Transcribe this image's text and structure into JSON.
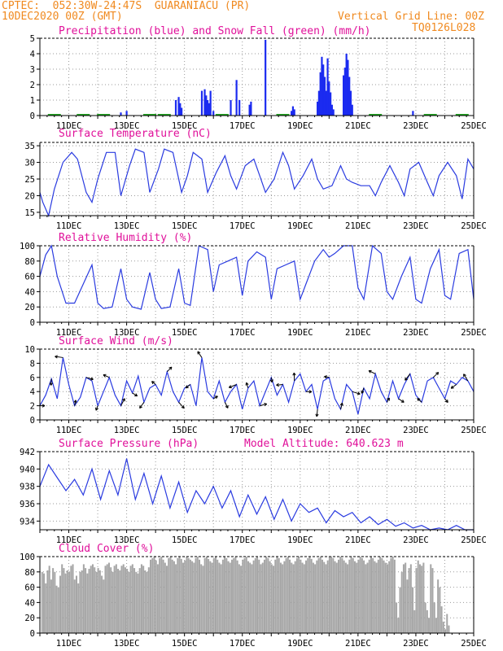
{
  "header": {
    "line1": "CPTEC:  052:30W-24:47S  GUARANIACU (PR)",
    "line2": "10DEC2020 00Z (GMT)",
    "grid_note": "Vertical Grid Line: 00Z",
    "code": "TQ0126L028"
  },
  "colors": {
    "header": "#f08a20",
    "title": "#e0109a",
    "precip": "#1b2bf0",
    "snow": "#1aa21a",
    "line": "#2a3be0",
    "cloud": "#a6a6a6",
    "grid": "#9a9a9a"
  },
  "x_axis": {
    "start_day": 10,
    "end_day": 25,
    "tick_labels": [
      "11DEC",
      "13DEC",
      "15DEC",
      "17DEC",
      "19DEC",
      "21DEC",
      "23DEC",
      "25DEC"
    ]
  },
  "chart_data": [
    {
      "type": "bar",
      "title": "Precipitation (blue) and Snow Fall (green) (mm/h)",
      "ylim": [
        0,
        5
      ],
      "yticks": [
        "0",
        "1",
        "2",
        "3",
        "4",
        "5"
      ],
      "series": [
        {
          "name": "Precipitation",
          "x": [
            12.8,
            13.0,
            14.7,
            14.8,
            14.85,
            14.9,
            15.6,
            15.7,
            15.75,
            15.8,
            15.85,
            15.9,
            16.0,
            16.6,
            16.8,
            16.9,
            17.25,
            17.3,
            17.8,
            18.7,
            18.75,
            18.8,
            19.6,
            19.65,
            19.7,
            19.75,
            19.8,
            19.85,
            19.9,
            19.95,
            20.0,
            20.05,
            20.1,
            20.15,
            20.5,
            20.55,
            20.6,
            20.65,
            20.7,
            20.75,
            20.8,
            22.9
          ],
          "values": [
            0.2,
            0.3,
            1.0,
            1.2,
            0.8,
            0.5,
            1.6,
            1.7,
            1.3,
            1.0,
            0.8,
            1.6,
            0.3,
            1.0,
            2.3,
            1.0,
            0.7,
            0.9,
            4.9,
            0.3,
            0.6,
            0.4,
            0.9,
            1.6,
            2.8,
            3.8,
            3.3,
            2.5,
            1.6,
            3.7,
            2.2,
            1.5,
            0.7,
            0.4,
            2.6,
            3.1,
            4.0,
            3.6,
            2.5,
            1.6,
            0.7,
            0.3
          ]
        },
        {
          "name": "Snow Fall",
          "x": [
            10.5,
            11.5,
            12.2,
            13.8,
            14.3,
            16.3,
            18.4,
            21.6,
            23.5,
            24.6
          ],
          "values": [
            0.05,
            0.05,
            0.05,
            0.05,
            0.05,
            0.05,
            0.05,
            0.05,
            0.05,
            0.05
          ]
        }
      ]
    },
    {
      "type": "line",
      "title": "Surface Temperature (nC)",
      "ylim": [
        14,
        36
      ],
      "yticks": [
        "15",
        "20",
        "25",
        "30",
        "35"
      ],
      "x": [
        10.0,
        10.1,
        10.3,
        10.5,
        10.8,
        11.1,
        11.3,
        11.6,
        11.8,
        12.0,
        12.3,
        12.6,
        12.8,
        13.1,
        13.3,
        13.6,
        13.8,
        14.1,
        14.3,
        14.6,
        14.9,
        15.1,
        15.3,
        15.6,
        15.8,
        16.1,
        16.4,
        16.6,
        16.8,
        17.1,
        17.4,
        17.6,
        17.8,
        18.1,
        18.4,
        18.6,
        18.8,
        19.1,
        19.4,
        19.6,
        19.8,
        20.1,
        20.4,
        20.6,
        20.8,
        21.1,
        21.4,
        21.6,
        21.8,
        22.1,
        22.4,
        22.6,
        22.8,
        23.1,
        23.4,
        23.6,
        23.8,
        24.1,
        24.4,
        24.6,
        24.8,
        25.0
      ],
      "values": [
        21,
        18,
        14,
        22,
        30,
        33,
        31,
        21,
        18,
        25,
        33,
        33,
        20,
        29,
        34,
        33,
        21,
        28,
        34,
        33,
        21,
        26,
        33,
        31,
        21,
        27,
        32,
        26,
        22,
        29,
        31,
        26,
        21,
        25,
        33,
        29,
        22,
        26,
        31,
        25,
        22,
        23,
        29,
        25,
        24,
        23,
        23,
        20,
        24,
        29,
        24,
        20,
        28,
        30,
        24,
        20,
        26,
        30,
        26,
        19,
        31,
        28
      ]
    },
    {
      "type": "line",
      "title": "Relative Humidity (%)",
      "ylim": [
        0,
        100
      ],
      "yticks": [
        "0",
        "20",
        "40",
        "60",
        "80",
        "100"
      ],
      "x": [
        10.0,
        10.2,
        10.4,
        10.6,
        10.9,
        11.2,
        11.5,
        11.8,
        12.0,
        12.2,
        12.5,
        12.8,
        13.0,
        13.2,
        13.5,
        13.8,
        14.0,
        14.2,
        14.5,
        14.8,
        15.0,
        15.2,
        15.5,
        15.8,
        16.0,
        16.2,
        16.5,
        16.8,
        17.0,
        17.2,
        17.5,
        17.8,
        18.0,
        18.2,
        18.5,
        18.8,
        19.0,
        19.2,
        19.5,
        19.8,
        20.0,
        20.2,
        20.5,
        20.8,
        21.0,
        21.2,
        21.5,
        21.8,
        22.0,
        22.2,
        22.5,
        22.8,
        23.0,
        23.2,
        23.5,
        23.8,
        24.0,
        24.2,
        24.5,
        24.8,
        25.0
      ],
      "values": [
        60,
        88,
        100,
        60,
        25,
        25,
        50,
        75,
        25,
        18,
        20,
        70,
        30,
        20,
        17,
        65,
        30,
        18,
        20,
        70,
        25,
        22,
        100,
        95,
        40,
        75,
        80,
        85,
        35,
        80,
        92,
        85,
        30,
        70,
        75,
        80,
        30,
        50,
        80,
        95,
        85,
        90,
        100,
        100,
        45,
        30,
        100,
        90,
        40,
        30,
        60,
        85,
        30,
        25,
        70,
        95,
        35,
        30,
        90,
        95,
        30
      ]
    },
    {
      "type": "line",
      "title": "Surface Wind (m/s)",
      "ylim": [
        0,
        10
      ],
      "yticks": [
        "0",
        "2",
        "4",
        "6",
        "8",
        "10"
      ],
      "x": [
        10.0,
        10.2,
        10.4,
        10.6,
        10.8,
        11.0,
        11.2,
        11.4,
        11.6,
        11.8,
        12.0,
        12.2,
        12.4,
        12.6,
        12.8,
        13.0,
        13.2,
        13.4,
        13.6,
        13.8,
        14.0,
        14.2,
        14.4,
        14.6,
        14.8,
        15.0,
        15.2,
        15.4,
        15.6,
        15.8,
        16.0,
        16.2,
        16.4,
        16.6,
        16.8,
        17.0,
        17.2,
        17.4,
        17.6,
        17.8,
        18.0,
        18.2,
        18.4,
        18.6,
        18.8,
        19.0,
        19.2,
        19.4,
        19.6,
        19.8,
        20.0,
        20.2,
        20.4,
        20.6,
        20.8,
        21.0,
        21.2,
        21.4,
        21.6,
        21.8,
        22.0,
        22.2,
        22.4,
        22.6,
        22.8,
        23.0,
        23.2,
        23.4,
        23.6,
        23.8,
        24.0,
        24.2,
        24.4,
        24.6,
        24.8,
        25.0
      ],
      "values": [
        2.0,
        3.5,
        5.8,
        3.0,
        8.8,
        5.0,
        2.0,
        3.2,
        6.0,
        5.5,
        2.0,
        4.0,
        6.0,
        3.5,
        2.0,
        5.5,
        3.8,
        6.2,
        2.5,
        4.5,
        5.0,
        3.5,
        6.8,
        4.0,
        2.5,
        4.5,
        5.0,
        2.0,
        8.8,
        4.0,
        3.0,
        5.5,
        2.5,
        4.0,
        5.0,
        1.5,
        4.5,
        5.5,
        2.0,
        4.0,
        6.0,
        3.5,
        5.0,
        2.5,
        5.5,
        6.5,
        4.0,
        5.0,
        1.5,
        5.5,
        6.0,
        3.0,
        1.5,
        5.0,
        4.0,
        0.8,
        4.5,
        3.0,
        6.5,
        4.0,
        2.5,
        5.5,
        3.0,
        5.0,
        6.5,
        3.5,
        2.5,
        5.5,
        6.0,
        4.5,
        3.0,
        5.5,
        5.0,
        6.0,
        5.5,
        4.0
      ]
    },
    {
      "type": "line",
      "title": "Surface Pressure (hPa)",
      "subtitle": "Model Altitude: 640.623 m",
      "ylim": [
        933,
        942
      ],
      "yticks": [
        "934",
        "936",
        "938",
        "940",
        "942"
      ],
      "x": [
        10.0,
        10.3,
        10.6,
        10.9,
        11.2,
        11.5,
        11.8,
        12.1,
        12.4,
        12.7,
        13.0,
        13.3,
        13.6,
        13.9,
        14.2,
        14.5,
        14.8,
        15.1,
        15.4,
        15.7,
        16.0,
        16.3,
        16.6,
        16.9,
        17.2,
        17.5,
        17.8,
        18.1,
        18.4,
        18.7,
        19.0,
        19.3,
        19.6,
        19.9,
        20.2,
        20.5,
        20.8,
        21.1,
        21.4,
        21.7,
        22.0,
        22.3,
        22.6,
        22.9,
        23.2,
        23.5,
        23.8,
        24.1,
        24.4,
        24.7,
        25.0
      ],
      "values": [
        938.0,
        940.5,
        939.0,
        937.5,
        938.8,
        937.0,
        940.0,
        936.5,
        939.8,
        937.0,
        941.2,
        936.5,
        939.5,
        936.0,
        939.2,
        935.5,
        938.5,
        935.0,
        937.5,
        936.0,
        938.0,
        935.5,
        937.5,
        934.5,
        937.0,
        934.8,
        936.8,
        934.2,
        936.5,
        934.0,
        936.0,
        935.0,
        935.5,
        933.8,
        935.2,
        934.5,
        935.0,
        933.8,
        934.5,
        933.6,
        934.2,
        933.4,
        933.8,
        933.2,
        933.5,
        933.0,
        933.2,
        933.0,
        933.5,
        933.0,
        932.8
      ]
    },
    {
      "type": "bar",
      "title": "Cloud Cover (%)",
      "ylim": [
        0,
        100
      ],
      "yticks": [
        "0",
        "20",
        "40",
        "60",
        "80",
        "100"
      ],
      "x_start": 10.05,
      "x_step": 0.0625,
      "values": [
        80,
        78,
        65,
        82,
        88,
        70,
        85,
        80,
        62,
        60,
        75,
        90,
        85,
        78,
        82,
        80,
        88,
        90,
        70,
        75,
        65,
        80,
        82,
        90,
        85,
        78,
        84,
        88,
        90,
        86,
        80,
        85,
        82,
        75,
        70,
        88,
        90,
        92,
        86,
        80,
        88,
        90,
        84,
        82,
        88,
        90,
        86,
        84,
        80,
        88,
        90,
        85,
        80,
        78,
        85,
        90,
        88,
        82,
        80,
        86,
        96,
        98,
        100,
        95,
        90,
        98,
        100,
        96,
        92,
        88,
        98,
        100,
        96,
        94,
        90,
        98,
        100,
        97,
        92,
        95,
        100,
        98,
        96,
        94,
        92,
        98,
        100,
        96,
        90,
        88,
        98,
        100,
        97,
        94,
        92,
        98,
        100,
        96,
        92,
        90,
        96,
        100,
        98,
        94,
        92,
        96,
        98,
        100,
        95,
        90,
        88,
        96,
        98,
        100,
        94,
        92,
        90,
        95,
        98,
        100,
        96,
        90,
        92,
        96,
        100,
        98,
        94,
        90,
        88,
        96,
        100,
        98,
        92,
        90,
        94,
        98,
        100,
        96,
        92,
        90,
        94,
        98,
        100,
        96,
        92,
        90,
        95,
        98,
        100,
        97,
        92,
        90,
        95,
        98,
        100,
        96,
        93,
        90,
        95,
        99,
        100,
        98,
        94,
        92,
        96,
        100,
        98,
        95,
        92,
        90,
        96,
        100,
        98,
        94,
        92,
        96,
        100,
        98,
        95,
        90,
        92,
        96,
        100,
        98,
        94,
        92,
        96,
        100,
        98,
        95,
        92,
        90,
        94,
        98,
        100,
        96,
        40,
        20,
        60,
        80,
        90,
        92,
        70,
        85,
        90,
        60,
        30,
        85,
        95,
        90,
        88,
        92,
        40,
        30,
        20,
        90,
        85,
        40,
        20,
        70,
        60,
        35,
        15,
        5,
        25,
        10
      ]
    }
  ]
}
